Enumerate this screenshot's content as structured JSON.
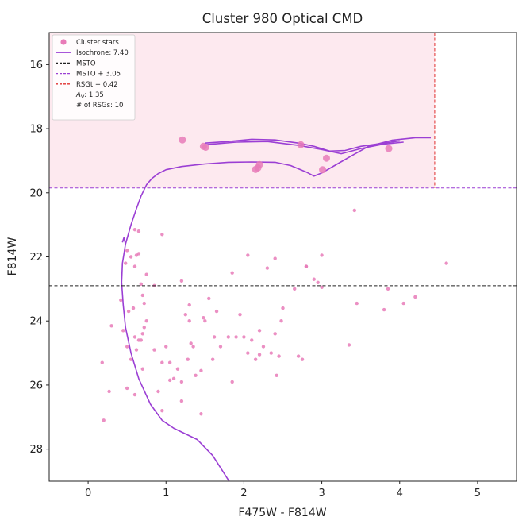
{
  "chart_data": {
    "type": "scatter",
    "title": "Cluster 980 Optical CMD",
    "xlabel": "F475W - F814W",
    "ylabel": "F814W",
    "xlim": [
      -0.5,
      5.5
    ],
    "ylim": [
      29.0,
      15.0
    ],
    "y_inverted": true,
    "x_ticks": [
      0,
      1,
      2,
      3,
      4,
      5
    ],
    "y_ticks": [
      16,
      18,
      20,
      22,
      24,
      26,
      28
    ],
    "colors": {
      "cluster": "#e87bb8",
      "isochrone": "#9b3fd4",
      "msto": "#222222",
      "msto_plus": "#9b3fd4",
      "rsg": "#e03030",
      "rsg_region": "#fde9ef"
    },
    "legend": {
      "placement": "top-left",
      "entries": [
        "Cluster stars",
        "Isochrone: 7.40",
        "MSTO",
        "MSTO + 3.05",
        "RSGt + 0.42",
        "A_V: 1.35",
        "# of RSGs: 10"
      ]
    },
    "reference_lines": {
      "msto": 22.9,
      "msto_plus": 19.85,
      "rsg_color": 4.45
    },
    "rsg_region": {
      "x": [
        -0.5,
        4.45
      ],
      "y": [
        15.0,
        19.85
      ]
    },
    "rsg_stars": [
      [
        1.21,
        18.35
      ],
      [
        1.48,
        18.55
      ],
      [
        1.51,
        18.58
      ],
      [
        2.15,
        19.27
      ],
      [
        2.18,
        19.22
      ],
      [
        2.2,
        19.12
      ],
      [
        2.73,
        18.5
      ],
      [
        3.01,
        19.28
      ],
      [
        3.06,
        18.92
      ],
      [
        3.86,
        18.62
      ]
    ],
    "cluster_stars": [
      [
        0.18,
        25.3
      ],
      [
        0.27,
        26.2
      ],
      [
        0.2,
        27.1
      ],
      [
        0.3,
        24.15
      ],
      [
        0.42,
        23.35
      ],
      [
        0.45,
        24.3
      ],
      [
        0.48,
        22.2
      ],
      [
        0.5,
        21.8
      ],
      [
        0.52,
        23.7
      ],
      [
        0.55,
        22.0
      ],
      [
        0.58,
        23.6
      ],
      [
        0.6,
        22.3
      ],
      [
        0.62,
        21.95
      ],
      [
        0.65,
        21.9
      ],
      [
        0.6,
        21.15
      ],
      [
        0.65,
        21.2
      ],
      [
        0.68,
        22.85
      ],
      [
        0.7,
        23.2
      ],
      [
        0.72,
        23.45
      ],
      [
        0.75,
        22.55
      ],
      [
        0.5,
        24.8
      ],
      [
        0.55,
        25.2
      ],
      [
        0.6,
        24.5
      ],
      [
        0.62,
        24.9
      ],
      [
        0.65,
        24.6
      ],
      [
        0.68,
        24.6
      ],
      [
        0.7,
        24.4
      ],
      [
        0.72,
        24.2
      ],
      [
        0.75,
        24.0
      ],
      [
        0.5,
        26.1
      ],
      [
        0.6,
        26.3
      ],
      [
        0.7,
        25.5
      ],
      [
        0.85,
        24.9
      ],
      [
        0.95,
        25.3
      ],
      [
        1.0,
        24.8
      ],
      [
        1.05,
        25.3
      ],
      [
        1.05,
        25.85
      ],
      [
        1.1,
        25.8
      ],
      [
        1.15,
        25.5
      ],
      [
        1.2,
        25.9
      ],
      [
        1.28,
        25.2
      ],
      [
        1.3,
        24.0
      ],
      [
        1.32,
        24.7
      ],
      [
        1.35,
        24.8
      ],
      [
        1.38,
        25.7
      ],
      [
        1.45,
        25.55
      ],
      [
        1.48,
        23.9
      ],
      [
        1.5,
        24.0
      ],
      [
        1.55,
        23.3
      ],
      [
        1.6,
        25.2
      ],
      [
        1.62,
        24.5
      ],
      [
        1.65,
        23.7
      ],
      [
        1.7,
        24.8
      ],
      [
        1.8,
        24.5
      ],
      [
        1.85,
        25.9
      ],
      [
        1.9,
        24.5
      ],
      [
        1.95,
        23.8
      ],
      [
        2.0,
        24.5
      ],
      [
        2.05,
        25.0
      ],
      [
        2.1,
        24.6
      ],
      [
        2.15,
        25.2
      ],
      [
        2.2,
        24.3
      ],
      [
        2.25,
        24.8
      ],
      [
        2.3,
        22.35
      ],
      [
        2.35,
        25.0
      ],
      [
        2.4,
        24.4
      ],
      [
        2.42,
        25.7
      ],
      [
        2.45,
        25.1
      ],
      [
        2.48,
        24.0
      ],
      [
        2.5,
        23.6
      ],
      [
        2.65,
        23.0
      ],
      [
        2.7,
        25.1
      ],
      [
        2.75,
        25.2
      ],
      [
        2.8,
        22.3
      ],
      [
        2.9,
        22.7
      ],
      [
        2.95,
        22.8
      ],
      [
        3.0,
        21.95
      ],
      [
        3.35,
        24.75
      ],
      [
        3.45,
        23.45
      ],
      [
        3.8,
        23.65
      ],
      [
        4.05,
        23.45
      ],
      [
        4.2,
        23.25
      ],
      [
        4.6,
        22.2
      ],
      [
        3.42,
        20.55
      ],
      [
        3.85,
        23.0
      ],
      [
        0.95,
        21.3
      ],
      [
        1.2,
        22.75
      ],
      [
        1.3,
        23.5
      ],
      [
        1.45,
        26.9
      ],
      [
        1.2,
        26.5
      ],
      [
        0.95,
        26.8
      ],
      [
        0.9,
        26.2
      ],
      [
        2.05,
        21.95
      ],
      [
        1.85,
        22.5
      ],
      [
        2.4,
        22.05
      ],
      [
        3.0,
        22.95
      ],
      [
        2.8,
        22.3
      ],
      [
        0.85,
        22.9
      ],
      [
        1.25,
        23.8
      ],
      [
        2.2,
        25.05
      ]
    ],
    "isochrone_main": [
      [
        1.81,
        29.0
      ],
      [
        1.6,
        28.2
      ],
      [
        1.4,
        27.7
      ],
      [
        1.1,
        27.35
      ],
      [
        0.95,
        27.1
      ],
      [
        0.8,
        26.6
      ],
      [
        0.65,
        25.8
      ],
      [
        0.55,
        25.0
      ],
      [
        0.48,
        24.2
      ],
      [
        0.45,
        23.5
      ],
      [
        0.43,
        22.8
      ],
      [
        0.44,
        22.2
      ],
      [
        0.48,
        21.6
      ],
      [
        0.55,
        21.0
      ],
      [
        0.62,
        20.5
      ],
      [
        0.68,
        20.1
      ],
      [
        0.75,
        19.75
      ],
      [
        0.82,
        19.55
      ],
      [
        0.9,
        19.4
      ],
      [
        1.0,
        19.28
      ],
      [
        1.2,
        19.18
      ],
      [
        1.5,
        19.1
      ],
      [
        1.8,
        19.05
      ],
      [
        2.1,
        19.04
      ],
      [
        2.4,
        19.05
      ],
      [
        2.6,
        19.15
      ],
      [
        2.8,
        19.35
      ],
      [
        2.9,
        19.48
      ],
      [
        3.0,
        19.38
      ],
      [
        3.2,
        19.1
      ],
      [
        3.4,
        18.82
      ],
      [
        3.6,
        18.55
      ],
      [
        3.9,
        18.36
      ],
      [
        4.2,
        18.28
      ],
      [
        4.4,
        18.28
      ]
    ],
    "isochrone_hook": [
      [
        0.44,
        21.55
      ],
      [
        0.46,
        21.4
      ],
      [
        0.48,
        21.6
      ]
    ],
    "isochrone_upper": [
      [
        1.5,
        18.45
      ],
      [
        1.8,
        18.4
      ],
      [
        2.1,
        18.33
      ],
      [
        2.4,
        18.35
      ],
      [
        2.7,
        18.45
      ],
      [
        2.9,
        18.55
      ],
      [
        3.1,
        18.7
      ],
      [
        3.3,
        18.68
      ],
      [
        3.5,
        18.55
      ],
      [
        3.8,
        18.45
      ],
      [
        4.0,
        18.38
      ]
    ],
    "isochrone_upper_lower": [
      [
        1.5,
        18.5
      ],
      [
        1.9,
        18.42
      ],
      [
        2.3,
        18.4
      ],
      [
        2.7,
        18.52
      ],
      [
        3.0,
        18.65
      ],
      [
        3.25,
        18.78
      ],
      [
        3.5,
        18.62
      ],
      [
        3.8,
        18.48
      ],
      [
        4.05,
        18.42
      ]
    ]
  }
}
